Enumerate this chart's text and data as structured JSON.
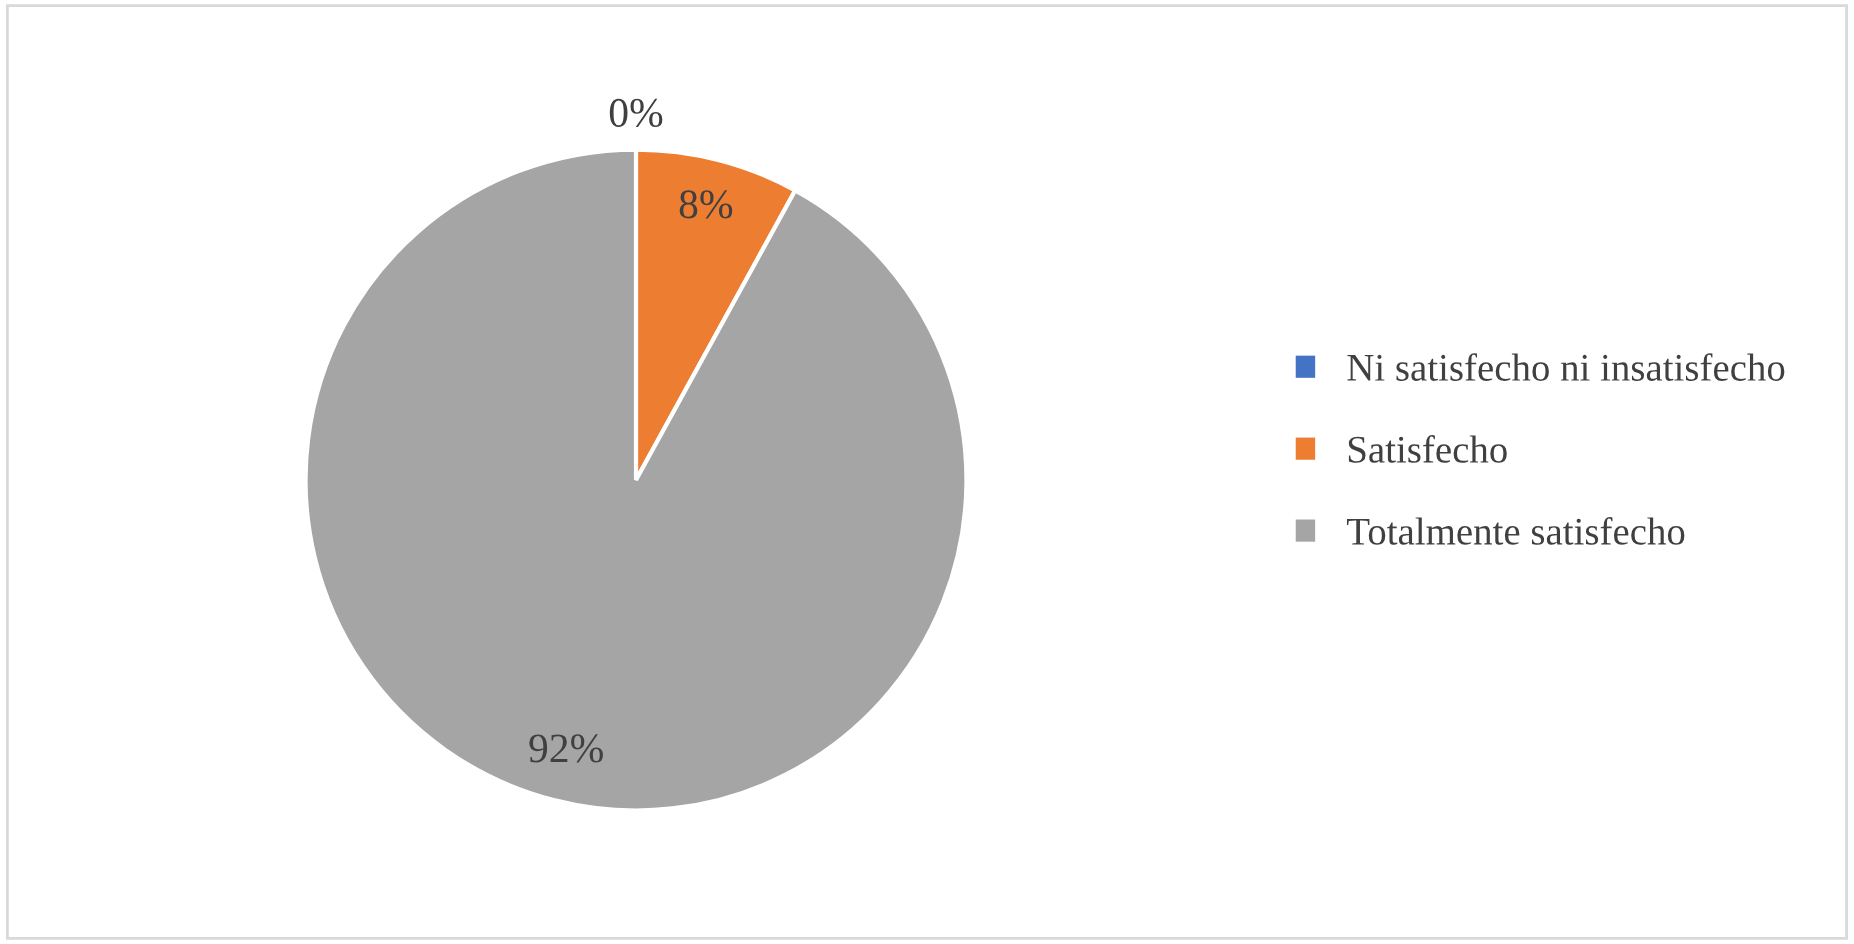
{
  "chart_data": {
    "type": "pie",
    "categories": [
      "Ni satisfecho ni insatisfecho",
      "Satisfecho",
      "Totalmente satisfecho"
    ],
    "values": [
      0,
      8,
      92
    ],
    "colors": [
      "#4472c4",
      "#ed7d31",
      "#a5a5a5"
    ],
    "value_labels": [
      "0%",
      "8%",
      "92%"
    ],
    "legend": "right"
  }
}
